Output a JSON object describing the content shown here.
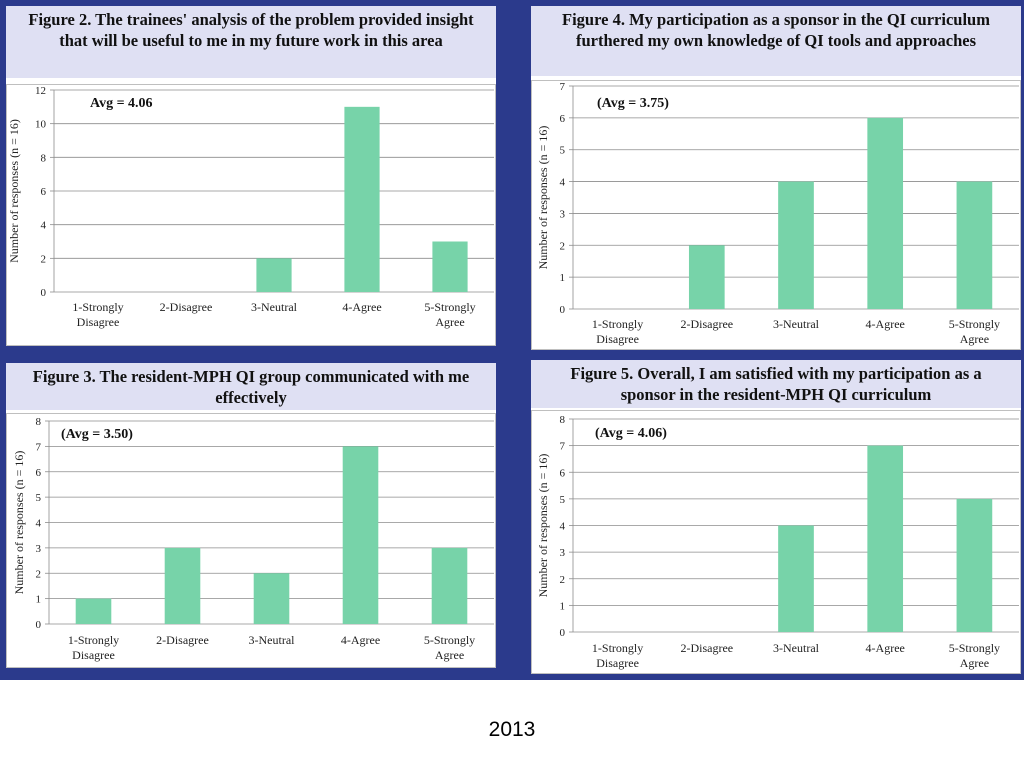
{
  "footer": {
    "year": "2013"
  },
  "chart_data": [
    {
      "type": "bar",
      "title": "Figure 2. The trainees' analysis of the problem provided insight that will be useful to me in my future work in this area",
      "annotation": "Avg = 4.06",
      "ylabel": "Number of responses (n = 16)",
      "xlabel": "",
      "categories": [
        "1-Strongly Disagree",
        "2-Disagree",
        "3-Neutral",
        "4-Agree",
        "5-Strongly Agree"
      ],
      "values": [
        0,
        0,
        2,
        11,
        3
      ],
      "ylim": [
        0,
        12
      ],
      "yticks": [
        0,
        2,
        4,
        6,
        8,
        10,
        12
      ],
      "grid": true,
      "bar_color": "#77d3a9"
    },
    {
      "type": "bar",
      "title": "Figure 4. My participation as a sponsor in the QI curriculum furthered my own knowledge of QI tools and approaches",
      "annotation": "(Avg = 3.75)",
      "ylabel": "Number of responses (n = 16)",
      "xlabel": "",
      "categories": [
        "1-Strongly Disagree",
        "2-Disagree",
        "3-Neutral",
        "4-Agree",
        "5-Strongly Agree"
      ],
      "values": [
        0,
        2,
        4,
        6,
        4
      ],
      "ylim": [
        0,
        7
      ],
      "yticks": [
        0,
        1,
        2,
        3,
        4,
        5,
        6,
        7
      ],
      "grid": true,
      "bar_color": "#77d3a9"
    },
    {
      "type": "bar",
      "title": "Figure 3. The resident-MPH QI group communicated with me effectively",
      "annotation": "(Avg = 3.50)",
      "ylabel": "Number of responses (n = 16)",
      "xlabel": "",
      "categories": [
        "1-Strongly Disagree",
        "2-Disagree",
        "3-Neutral",
        "4-Agree",
        "5-Strongly Agree"
      ],
      "values": [
        1,
        3,
        2,
        7,
        3
      ],
      "ylim": [
        0,
        8
      ],
      "yticks": [
        0,
        1,
        2,
        3,
        4,
        5,
        6,
        7,
        8
      ],
      "grid": true,
      "bar_color": "#77d3a9"
    },
    {
      "type": "bar",
      "title": "Figure 5. Overall, I am satisfied with my participation as a sponsor in the resident-MPH QI curriculum",
      "annotation": "(Avg = 4.06)",
      "ylabel": "Number of responses (n = 16)",
      "xlabel": "",
      "categories": [
        "1-Strongly Disagree",
        "2-Disagree",
        "3-Neutral",
        "4-Agree",
        "5-Strongly Agree"
      ],
      "values": [
        0,
        0,
        4,
        7,
        5
      ],
      "ylim": [
        0,
        8
      ],
      "yticks": [
        0,
        1,
        2,
        3,
        4,
        5,
        6,
        7,
        8
      ],
      "grid": true,
      "bar_color": "#77d3a9"
    }
  ]
}
